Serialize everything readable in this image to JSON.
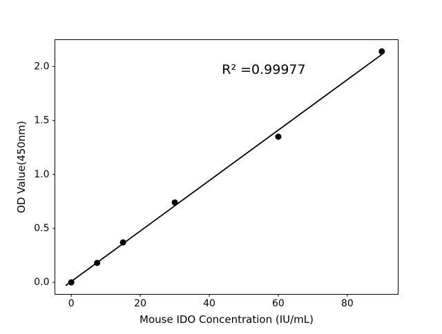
{
  "chart_data": {
    "type": "scatter",
    "title": "",
    "xlabel": "Mouse IDO Concentration (IU/mL)",
    "ylabel": "OD Value(450nm)",
    "x": [
      0,
      7.5,
      15,
      30,
      60,
      90
    ],
    "y": [
      0.0,
      0.18,
      0.37,
      0.74,
      1.35,
      2.14
    ],
    "fit_line": {
      "x": [
        -1.5,
        90
      ],
      "y": [
        -0.027,
        2.112
      ]
    },
    "annotation": {
      "text": "R² =0.99977",
      "x": 55.8,
      "y": 1.97
    },
    "xticks": [
      0,
      20,
      40,
      60,
      80
    ],
    "xtick_labels": [
      "0",
      "20",
      "40",
      "60",
      "80"
    ],
    "yticks": [
      0.0,
      0.5,
      1.0,
      1.5,
      2.0
    ],
    "ytick_labels": [
      "0.0",
      "0.5",
      "1.0",
      "1.5",
      "2.0"
    ],
    "xlim": [
      -4.74,
      94.74
    ],
    "ylim": [
      -0.111,
      2.249
    ],
    "grid": false,
    "legend": null,
    "marker_color": "#000000",
    "line_color": "#000000",
    "background_color": "#ffffff"
  }
}
